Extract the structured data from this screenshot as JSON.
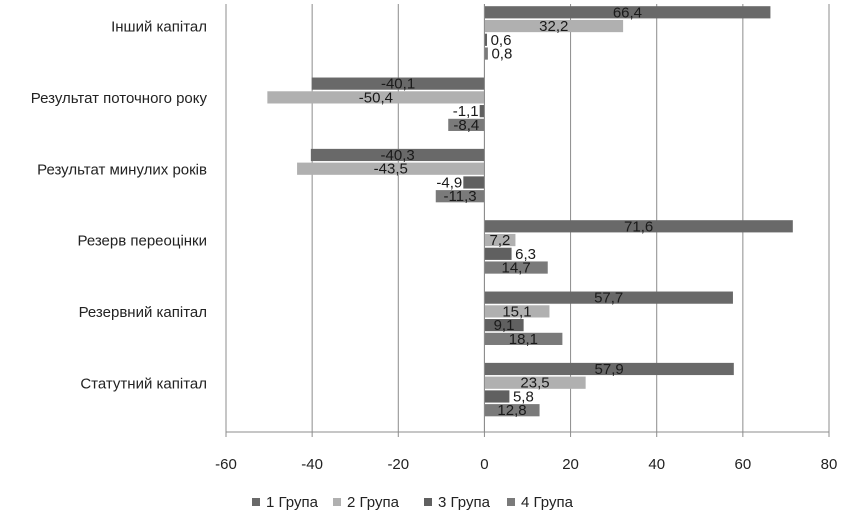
{
  "chart_data": {
    "type": "bar",
    "orientation": "horizontal",
    "categories": [
      "Статутний капітал",
      "Резервний капітал",
      "Резерв переоцінки",
      "Результат минулих років",
      "Результат поточного року",
      "Інший капітал"
    ],
    "category_labels_display": [
      "Статутний капітал",
      "Резервний капітал",
      "Резерв переоцінки ",
      "Результат минулих років ",
      "Результат поточного року",
      "Інший капітал"
    ],
    "series": [
      {
        "name": "1 Група",
        "color": "#696969",
        "values": [
          57.9,
          57.7,
          71.6,
          -40.3,
          -40.1,
          66.4
        ],
        "labels": [
          "57,9",
          "57,7",
          "71,6",
          "-40,3",
          "-40,1",
          "66,4"
        ]
      },
      {
        "name": "2 Група",
        "color": "#b0b0b0",
        "values": [
          23.5,
          15.1,
          7.2,
          -43.5,
          -50.4,
          32.2
        ],
        "labels": [
          "23,5",
          "15,1",
          "7,2",
          "-43,5",
          "-50,4",
          "32,2"
        ]
      },
      {
        "name": "3 Група",
        "color": "#606060",
        "values": [
          5.8,
          9.1,
          6.3,
          -4.9,
          -1.1,
          0.6
        ],
        "labels": [
          "5,8",
          "9,1",
          "6,3",
          "-4,9",
          "-1,1",
          "0,6"
        ]
      },
      {
        "name": "4 Група",
        "color": "#7a7a7a",
        "values": [
          12.8,
          18.1,
          14.7,
          -11.3,
          -8.4,
          0.8
        ],
        "labels": [
          "12,8",
          "18,1",
          "14,7",
          "-11,3",
          "-8,4",
          "0,8"
        ]
      }
    ],
    "xlim": [
      -60,
      80
    ],
    "xticks": [
      -60,
      -40,
      -20,
      0,
      20,
      40,
      60,
      80
    ],
    "xtick_labels": [
      "-60",
      "-40",
      "-20",
      "0",
      "20",
      "40",
      "60",
      "80"
    ],
    "grid": "vertical",
    "legend_position": "bottom",
    "title": "",
    "xlabel": "",
    "ylabel": ""
  }
}
